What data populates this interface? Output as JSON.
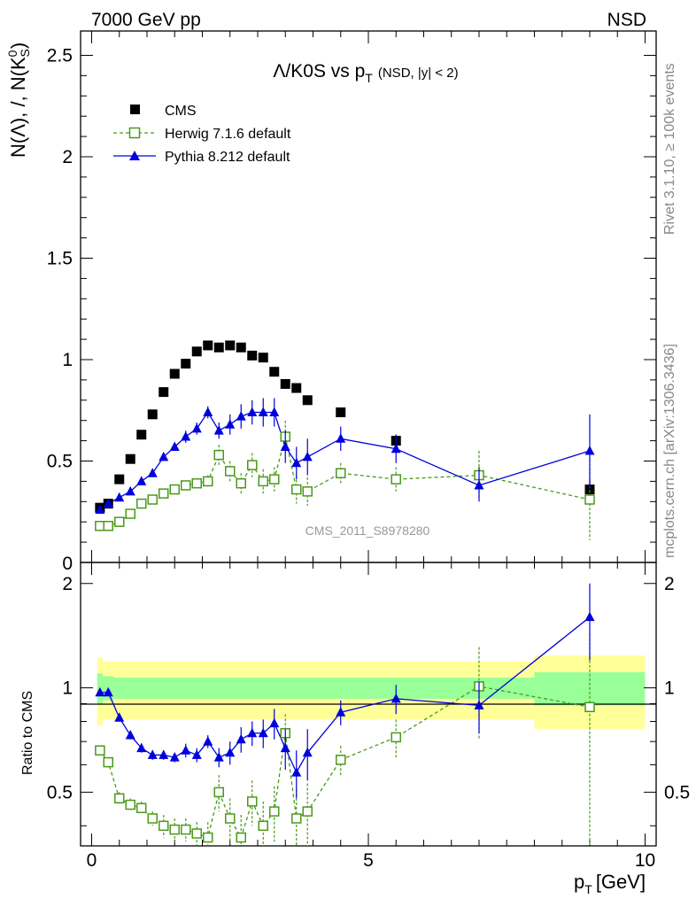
{
  "header": {
    "left": "7000 GeV pp",
    "right": "NSD"
  },
  "side_labels": {
    "rivet": "Rivet 3.1.10, ≥ 100k events",
    "mcplots": "mcplots.cern.ch [arXiv:1306.3436]"
  },
  "chart_data": {
    "type": "scatter",
    "title_main": "Λ/K0S vs p",
    "title_sub": "T",
    "title_tail": "(NSD, |y| < 2)",
    "watermark": "CMS_2011_S8978280",
    "ylabel_main": "N(Λ), /, N(K",
    "ylabel_sup": "0",
    "ylabel_sub": "S",
    "ylabel_tail": ")",
    "xlabel_main": "p",
    "xlabel_sub": "T",
    "xlabel_tail": "[GeV]",
    "ratio_ylabel": "Ratio to CMS",
    "xlim": [
      -0.2,
      10.2
    ],
    "ylim": [
      0,
      2.62
    ],
    "ratio_ylim": [
      0.35,
      2.3
    ],
    "log_ratio": true,
    "x_ticks": [
      "0",
      "5",
      "10"
    ],
    "y_ticks": [
      "0.5",
      "1",
      "1.5",
      "2",
      "2.5"
    ],
    "ratio_ticks": [
      "0.5",
      "1",
      "2"
    ],
    "legend": {
      "position": "top-left",
      "entries": [
        "CMS",
        "Herwig 7.1.6 default",
        "Pythia 8.212 default"
      ]
    },
    "colors": {
      "cms": "#000000",
      "herwig": "#4a9a1a",
      "pythia": "#0000dd",
      "band_inner": "#99ff99",
      "band_outer": "#ffff99"
    },
    "x": [
      0.15,
      0.3,
      0.5,
      0.7,
      0.9,
      1.1,
      1.3,
      1.5,
      1.7,
      1.9,
      2.1,
      2.3,
      2.5,
      2.7,
      2.9,
      3.1,
      3.3,
      3.5,
      3.7,
      3.9,
      4.5,
      5.5,
      7.0,
      9.0
    ],
    "x_err": [
      0.05,
      0.1,
      0.1,
      0.1,
      0.1,
      0.1,
      0.1,
      0.1,
      0.1,
      0.1,
      0.1,
      0.1,
      0.1,
      0.1,
      0.1,
      0.1,
      0.1,
      0.1,
      0.1,
      0.1,
      0.5,
      0.5,
      1.0,
      1.0
    ],
    "cms": [
      0.27,
      0.29,
      0.41,
      0.51,
      0.63,
      0.73,
      0.84,
      0.93,
      0.98,
      1.04,
      1.07,
      1.06,
      1.07,
      1.06,
      1.02,
      1.01,
      0.94,
      0.88,
      0.86,
      0.8,
      0.74,
      0.6,
      0.43,
      0.36
    ],
    "cms_err": [
      0.01,
      0.01,
      0.01,
      0.01,
      0.01,
      0.01,
      0.01,
      0.01,
      0.01,
      0.01,
      0.01,
      0.01,
      0.01,
      0.01,
      0.01,
      0.01,
      0.01,
      0.01,
      0.01,
      0.01,
      0.02,
      0.03,
      0.04,
      0.05
    ],
    "herwig": [
      0.18,
      0.18,
      0.2,
      0.24,
      0.29,
      0.31,
      0.34,
      0.36,
      0.38,
      0.39,
      0.4,
      0.53,
      0.45,
      0.39,
      0.48,
      0.4,
      0.41,
      0.62,
      0.36,
      0.35,
      0.44,
      0.41,
      0.43,
      0.31
    ],
    "herwig_err": [
      0.01,
      0.01,
      0.01,
      0.01,
      0.01,
      0.01,
      0.02,
      0.02,
      0.02,
      0.02,
      0.03,
      0.05,
      0.05,
      0.05,
      0.06,
      0.06,
      0.06,
      0.08,
      0.07,
      0.07,
      0.05,
      0.06,
      0.12,
      0.2
    ],
    "pythia": [
      0.26,
      0.29,
      0.32,
      0.35,
      0.4,
      0.44,
      0.52,
      0.57,
      0.62,
      0.66,
      0.74,
      0.65,
      0.68,
      0.72,
      0.74,
      0.74,
      0.74,
      0.57,
      0.49,
      0.52,
      0.61,
      0.56,
      0.38,
      0.55
    ],
    "pythia_err": [
      0.01,
      0.01,
      0.01,
      0.01,
      0.01,
      0.01,
      0.02,
      0.02,
      0.03,
      0.03,
      0.03,
      0.04,
      0.05,
      0.06,
      0.06,
      0.07,
      0.07,
      0.08,
      0.08,
      0.09,
      0.06,
      0.07,
      0.08,
      0.18
    ],
    "ratio_herwig": [
      0.66,
      0.61,
      0.48,
      0.46,
      0.45,
      0.42,
      0.4,
      0.39,
      0.39,
      0.38,
      0.37,
      0.5,
      0.42,
      0.37,
      0.47,
      0.4,
      0.44,
      0.74,
      0.42,
      0.44,
      0.62,
      0.72,
      1.01,
      0.88
    ],
    "ratio_herwig_err": [
      0.02,
      0.02,
      0.02,
      0.02,
      0.02,
      0.02,
      0.03,
      0.03,
      0.03,
      0.03,
      0.04,
      0.06,
      0.06,
      0.06,
      0.07,
      0.07,
      0.08,
      0.1,
      0.09,
      0.09,
      0.06,
      0.09,
      0.3,
      0.55
    ],
    "ratio_pythia": [
      0.97,
      0.97,
      0.82,
      0.73,
      0.67,
      0.64,
      0.64,
      0.63,
      0.66,
      0.64,
      0.7,
      0.63,
      0.65,
      0.71,
      0.74,
      0.74,
      0.79,
      0.67,
      0.57,
      0.65,
      0.85,
      0.93,
      0.89,
      1.6
    ],
    "ratio_pythia_err": [
      0.01,
      0.01,
      0.02,
      0.02,
      0.02,
      0.02,
      0.02,
      0.02,
      0.03,
      0.03,
      0.03,
      0.04,
      0.05,
      0.06,
      0.06,
      0.07,
      0.08,
      0.09,
      0.09,
      0.11,
      0.07,
      0.09,
      0.15,
      0.4
    ],
    "band_edges": [
      0.1,
      0.2,
      0.4,
      0.6,
      0.8,
      1.0,
      8.0,
      10.0
    ],
    "band_inner": [
      0.1,
      0.08,
      0.07,
      0.07,
      0.07,
      0.07,
      0.11
    ],
    "band_outer": [
      0.22,
      0.19,
      0.19,
      0.19,
      0.19,
      0.19,
      0.24
    ]
  }
}
